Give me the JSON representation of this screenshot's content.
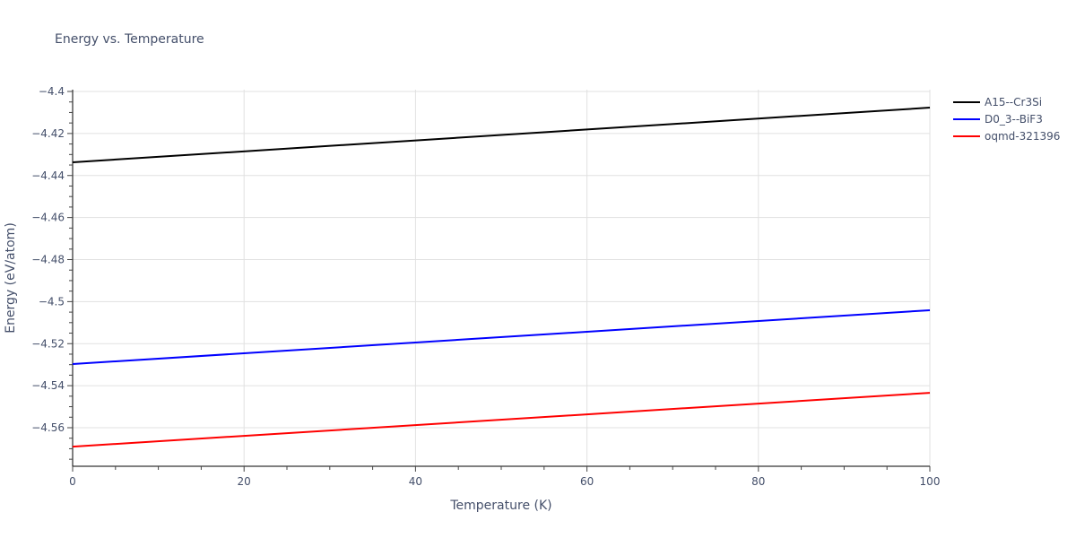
{
  "chart_data": {
    "type": "line",
    "title": "Energy vs. Temperature",
    "xlabel": "Temperature (K)",
    "ylabel": "Energy (eV/atom)",
    "xlim": [
      0,
      100
    ],
    "ylim": [
      -4.578,
      -4.4
    ],
    "x_ticks": [
      0,
      20,
      40,
      60,
      80,
      100
    ],
    "y_ticks": [
      -4.4,
      -4.42,
      -4.44,
      -4.46,
      -4.48,
      -4.5,
      -4.52,
      -4.54,
      -4.56
    ],
    "y_tick_labels": [
      "−4.4",
      "−4.42",
      "−4.44",
      "−4.46",
      "−4.48",
      "−4.5",
      "−4.52",
      "−4.54",
      "−4.56"
    ],
    "grid": true,
    "legend_position": "top-right-outside",
    "x": [
      0,
      100
    ],
    "series": [
      {
        "name": "A15--Cr3Si",
        "color": "#000000",
        "values": [
          -4.4337,
          -4.4077
        ]
      },
      {
        "name": "D0_3--BiF3",
        "color": "#0000ff",
        "values": [
          -4.5297,
          -4.5041
        ]
      },
      {
        "name": "oqmd-321396",
        "color": "#ff0000",
        "values": [
          -4.569,
          -4.5434
        ]
      }
    ]
  }
}
